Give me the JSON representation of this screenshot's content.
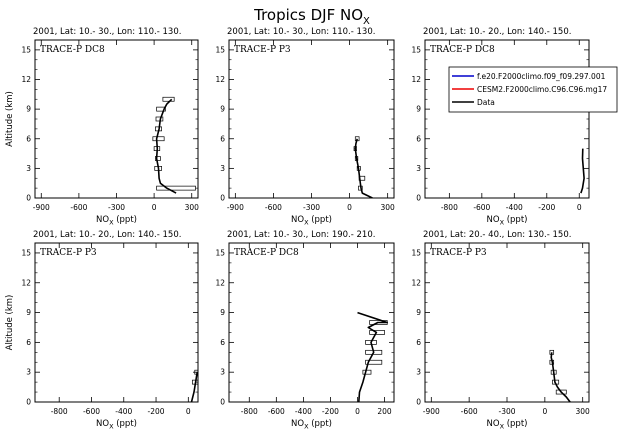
{
  "chart_data": {
    "type": "line",
    "title_main": "Tropics DJF NO",
    "title_sub": "X",
    "xlabel_main": "NO",
    "xlabel_sub": "X",
    "xlabel_unit": " (ppt)",
    "ylabel": "Altitude (km)",
    "ylim": [
      0,
      16
    ],
    "yticks": [
      0,
      3,
      6,
      9,
      12,
      15
    ],
    "legend": {
      "placement": "top-right",
      "entries": [
        {
          "label": "f.e20.F2000climo.f09_f09.297.001",
          "color": "#0000cc"
        },
        {
          "label": "CESM2.F2000climo.C96.C96.mg17",
          "color": "#ee0000"
        },
        {
          "label": "Data",
          "color": "#000000"
        }
      ]
    },
    "panels": [
      {
        "subtitle": "2001, Lat: 10.- 30., Lon: 110.- 130.",
        "campaign": "TRACE-P DC8",
        "xlim": [
          -950,
          350
        ],
        "xticks": [
          -900,
          -600,
          -300,
          0,
          300
        ],
        "series": [
          {
            "name": "Data",
            "x": [
              175,
              100,
              50,
              40,
              35,
              20,
              25,
              20,
              40,
              50,
              80,
              100,
              140
            ],
            "y": [
              0.5,
              1,
              1.5,
              2,
              3,
              4,
              5,
              6,
              7,
              8,
              9,
              9.5,
              10
            ]
          }
        ],
        "boxes": [
          {
            "y": 1,
            "lo": 20,
            "hi": 330
          },
          {
            "y": 3,
            "lo": 5,
            "hi": 60
          },
          {
            "y": 4,
            "lo": 10,
            "hi": 50
          },
          {
            "y": 5,
            "lo": 0,
            "hi": 45
          },
          {
            "y": 6,
            "lo": -10,
            "hi": 80
          },
          {
            "y": 7,
            "lo": 10,
            "hi": 60
          },
          {
            "y": 8,
            "lo": 15,
            "hi": 70
          },
          {
            "y": 9,
            "lo": 20,
            "hi": 90
          },
          {
            "y": 10,
            "lo": 70,
            "hi": 160
          }
        ]
      },
      {
        "subtitle": "2001, Lat: 10.- 30., Lon: 110.- 130.",
        "campaign": "TRACE-P P3",
        "xlim": [
          -950,
          350
        ],
        "xticks": [
          -900,
          -600,
          -300,
          0,
          300
        ],
        "series": [
          {
            "name": "Data",
            "x": [
              180,
              100,
              90,
              80,
              70,
              55,
              45,
              50,
              60
            ],
            "y": [
              0,
              0.5,
              1,
              2,
              3,
              4,
              5,
              5.5,
              6
            ]
          }
        ],
        "boxes": [
          {
            "y": 1,
            "lo": 70,
            "hi": 100
          },
          {
            "y": 2,
            "lo": 75,
            "hi": 120
          },
          {
            "y": 3,
            "lo": 60,
            "hi": 85
          },
          {
            "y": 4,
            "lo": 45,
            "hi": 65
          },
          {
            "y": 5,
            "lo": 35,
            "hi": 55
          },
          {
            "y": 6,
            "lo": 45,
            "hi": 75
          }
        ]
      },
      {
        "subtitle": "2001, Lat: 10.- 20., Lon: 140.- 150.",
        "campaign": "TRACE-P DC8",
        "xlim": [
          -950,
          60
        ],
        "xticks": [
          -800,
          -600,
          -400,
          -200,
          0
        ],
        "series": [
          {
            "name": "Data",
            "x": [
              10,
              20,
              30,
              25,
              20,
              22
            ],
            "y": [
              0.5,
              1,
              2,
              3,
              4,
              5
            ]
          }
        ],
        "boxes": []
      },
      {
        "subtitle": "2001, Lat: 10.- 20., Lon: 140.- 150.",
        "campaign": "TRACE-P P3",
        "xlim": [
          -950,
          60
        ],
        "xticks": [
          -800,
          -600,
          -400,
          -200,
          0
        ],
        "series": [
          {
            "name": "Data",
            "x": [
              20,
              35,
              45,
              55
            ],
            "y": [
              0,
              1,
              2,
              3
            ]
          }
        ],
        "boxes": [
          {
            "y": 2,
            "lo": 25,
            "hi": 60
          },
          {
            "y": 3,
            "lo": 40,
            "hi": 70
          }
        ]
      },
      {
        "subtitle": "2001, Lat: 10.- 30., Lon: 190.- 210.",
        "campaign": "TRACE-P DC8",
        "xlim": [
          -950,
          270
        ],
        "xticks": [
          -800,
          -600,
          -400,
          -200,
          0,
          200
        ],
        "series": [
          {
            "name": "Data",
            "x": [
              10,
              15,
              40,
              60,
              80,
              120,
              100,
              140,
              80,
              150,
              220,
              0
            ],
            "y": [
              0,
              1,
              2,
              3,
              4,
              5,
              6,
              7,
              7.5,
              8,
              8,
              9
            ]
          }
        ],
        "boxes": [
          {
            "y": 3,
            "lo": 40,
            "hi": 100
          },
          {
            "y": 4,
            "lo": 60,
            "hi": 180
          },
          {
            "y": 5,
            "lo": 60,
            "hi": 180
          },
          {
            "y": 6,
            "lo": 60,
            "hi": 140
          },
          {
            "y": 7,
            "lo": 90,
            "hi": 200
          },
          {
            "y": 8,
            "lo": 90,
            "hi": 220
          }
        ]
      },
      {
        "subtitle": "2001, Lat: 20.- 40., Lon: 130.- 150.",
        "campaign": "TRACE-P P3",
        "xlim": [
          -950,
          350
        ],
        "xticks": [
          -900,
          -600,
          -300,
          0,
          300
        ],
        "series": [
          {
            "name": "Data",
            "x": [
              200,
              170,
              130,
              100,
              80,
              70,
              60,
              50,
              55
            ],
            "y": [
              0,
              0.5,
              1,
              1.5,
              2,
              3,
              4,
              4.5,
              5
            ]
          }
        ],
        "boxes": [
          {
            "y": 1,
            "lo": 90,
            "hi": 170
          },
          {
            "y": 2,
            "lo": 60,
            "hi": 110
          },
          {
            "y": 3,
            "lo": 50,
            "hi": 90
          },
          {
            "y": 4,
            "lo": 40,
            "hi": 70
          },
          {
            "y": 5,
            "lo": 40,
            "hi": 70
          }
        ]
      }
    ]
  }
}
